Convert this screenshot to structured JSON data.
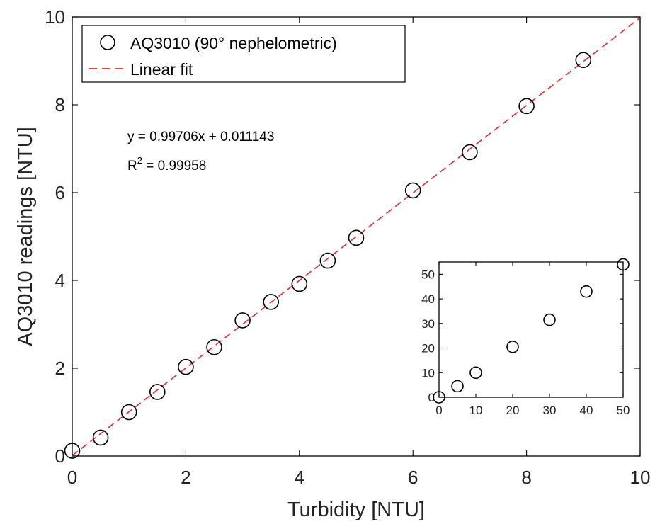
{
  "chart_data": [
    {
      "type": "scatter",
      "xlabel": "Turbidity [NTU]",
      "ylabel": "AQ3010 readings [NTU]",
      "xlim": [
        0,
        10
      ],
      "ylim": [
        0,
        10
      ],
      "xticks": [
        "0",
        "2",
        "4",
        "6",
        "8",
        "10"
      ],
      "yticks": [
        "0",
        "2",
        "4",
        "6",
        "8",
        "10"
      ],
      "legend_position": "top-left",
      "series": [
        {
          "name": "AQ3010 (90° nephelometric)",
          "marker": "open-circle",
          "color": "#000000",
          "x": [
            0,
            0.5,
            1,
            1.5,
            2,
            2.5,
            3,
            3.5,
            4,
            4.5,
            5,
            6,
            7,
            8,
            9
          ],
          "y": [
            0.12,
            0.42,
            1.0,
            1.46,
            2.03,
            2.48,
            3.09,
            3.51,
            3.92,
            4.45,
            4.97,
            6.05,
            6.92,
            7.97,
            9.02
          ]
        },
        {
          "name": "Linear fit",
          "style": "dashed",
          "color": "#e8282a",
          "slope": 0.99706,
          "intercept": 0.011143,
          "x": [
            0,
            10
          ],
          "y": [
            0.011143,
            9.981743
          ]
        }
      ],
      "annotations": {
        "equation": "y = 0.99706x + 0.011143",
        "r2_prefix": "R",
        "r2_sup": "2",
        "r2_value": " = 0.99958"
      }
    },
    {
      "type": "scatter",
      "role": "inset",
      "position": "bottom-right",
      "xlim": [
        0,
        50
      ],
      "ylim": [
        0,
        55
      ],
      "xticks": [
        "0",
        "10",
        "20",
        "30",
        "40",
        "50"
      ],
      "yticks": [
        "0",
        "10",
        "20",
        "30",
        "40",
        "50"
      ],
      "series": [
        {
          "marker": "open-circle",
          "color": "#000000",
          "x": [
            0,
            5,
            10,
            20,
            30,
            40,
            50
          ],
          "y": [
            0,
            4.5,
            10,
            20.5,
            31.5,
            43,
            54
          ]
        }
      ]
    }
  ]
}
